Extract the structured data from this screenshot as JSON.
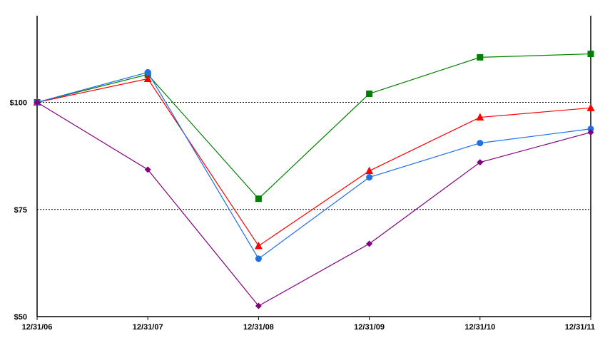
{
  "chart_data": {
    "type": "line",
    "x": [
      "12/31/06",
      "12/31/07",
      "12/31/08",
      "12/31/09",
      "12/31/10",
      "12/31/11"
    ],
    "y_ticks": [
      {
        "value": 50,
        "label": "$50"
      },
      {
        "value": 75,
        "label": "$75"
      },
      {
        "value": 100,
        "label": "$100"
      }
    ],
    "ylim": [
      50,
      102
    ],
    "grid": {
      "dotted_lines_at": [
        75,
        100
      ]
    },
    "legend": "none",
    "series": [
      {
        "color": "#008000",
        "marker": "square",
        "values": [
          100,
          106.5,
          77.5,
          102,
          110.5,
          111.3
        ]
      },
      {
        "color": "#ff0000",
        "marker": "triangle",
        "values": [
          100,
          105.5,
          66.5,
          84,
          96.5,
          98.7
        ]
      },
      {
        "color": "#1f6fe6",
        "marker": "circle",
        "values": [
          100,
          107,
          63.5,
          82.5,
          90.5,
          93.8
        ]
      },
      {
        "color": "#800080",
        "marker": "diamond",
        "values": [
          100,
          84.3,
          52.5,
          67,
          86,
          93
        ]
      }
    ]
  }
}
